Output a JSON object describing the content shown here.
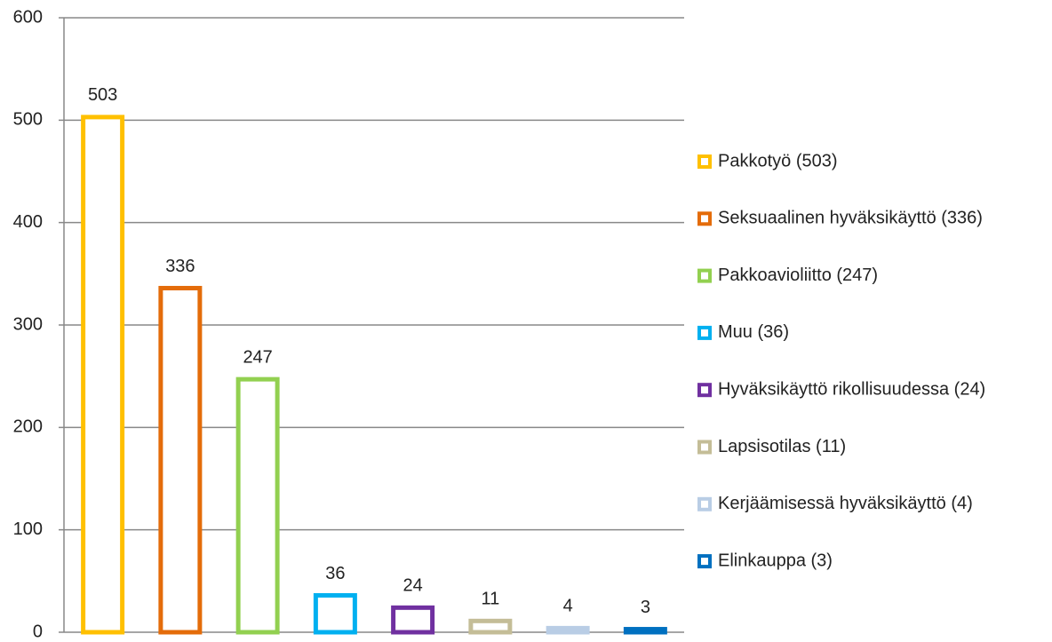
{
  "chart_data": {
    "type": "bar",
    "series": [
      {
        "name": "Pakkotyö (503)",
        "color": "#ffc000",
        "values": [
          503
        ]
      },
      {
        "name": "Seksuaalinen hyväksikäyttö (336)",
        "color": "#e46c0a",
        "values": [
          336
        ]
      },
      {
        "name": "Pakkoavioliitto (247)",
        "color": "#92d050",
        "values": [
          247
        ]
      },
      {
        "name": "Muu (36)",
        "color": "#00b0f0",
        "values": [
          36
        ]
      },
      {
        "name": "Hyväksikäyttö rikollisuudessa (24)",
        "color": "#7030a0",
        "values": [
          24
        ]
      },
      {
        "name": "Lapsisotilas (11)",
        "color": "#c4bd97",
        "values": [
          11
        ]
      },
      {
        "name": "Kerjäämisessä hyväksikäyttö (4)",
        "color": "#b9cde5",
        "values": [
          4
        ]
      },
      {
        "name": "Elinkauppa (3)",
        "color": "#0070c0",
        "values": [
          3
        ]
      }
    ],
    "ylim": [
      0,
      600
    ],
    "yticks": [
      0,
      100,
      200,
      300,
      400,
      500,
      600
    ],
    "grid": true,
    "legend": "right"
  }
}
